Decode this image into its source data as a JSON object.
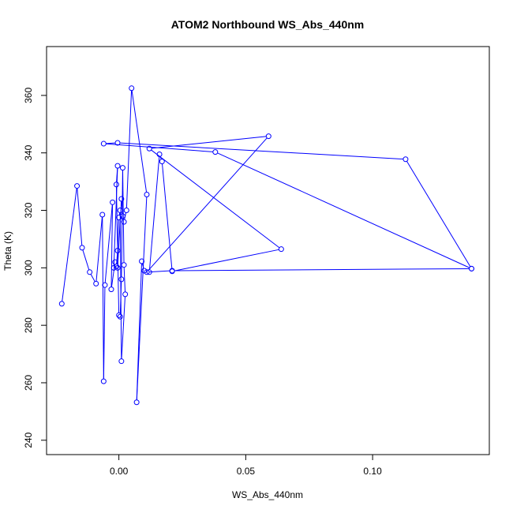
{
  "chart_data": {
    "type": "line",
    "title": "ATOM2 Northbound WS_Abs_440nm",
    "xlabel": "WS_Abs_440nm",
    "ylabel": "Theta (K)",
    "xlim": [
      -0.0285,
      0.146
    ],
    "ylim": [
      235,
      377
    ],
    "xticks": [
      0.0,
      0.05,
      0.1
    ],
    "xtick_labels": [
      "0.00",
      "0.05",
      "0.10"
    ],
    "yticks": [
      240,
      260,
      280,
      300,
      320,
      340,
      360
    ],
    "yticks_labels": [
      "240",
      "260",
      "280",
      "300",
      "320",
      "340",
      "360"
    ],
    "grid": false,
    "color": "#0000ff",
    "marker": "open-circle",
    "series": [
      {
        "x": [
          -0.0225,
          -0.0165,
          -0.0145,
          -0.0115,
          -0.009,
          -0.0065,
          -0.006,
          -0.0055,
          -0.0025,
          -0.003,
          -0.0015,
          -0.002,
          -0.0005,
          -0.001,
          0.0,
          0.0005,
          0.001,
          0.0015,
          0.002,
          0.0025,
          0.001,
          0.0005,
          0.0,
          -0.0005,
          -0.001,
          -0.0005,
          0.001,
          0.0015,
          0.002,
          0.003,
          0.005,
          0.011,
          0.007,
          0.009,
          0.01,
          0.012,
          0.016,
          0.017,
          0.021,
          0.064,
          0.012,
          0.059,
          0.011,
          0.021,
          0.139,
          0.038,
          -0.006,
          -0.0005,
          0.113,
          0.139
        ],
        "y": [
          287.5,
          328.5,
          307.0,
          298.5,
          294.5,
          318.5,
          260.5,
          294.0,
          322.8,
          292.5,
          302.0,
          300.0,
          335.5,
          329.0,
          283.5,
          283.0,
          296.0,
          334.8,
          301.0,
          290.8,
          267.5,
          320.0,
          317.5,
          306.0,
          300.5,
          300.0,
          324.0,
          318.0,
          316.0,
          320.0,
          362.5,
          325.5,
          253.2,
          302.3,
          299.0,
          298.5,
          339.5,
          337.0,
          298.8,
          306.5,
          341.5,
          345.8,
          298.5,
          299.0,
          299.7,
          340.3,
          343.2,
          343.5,
          337.8,
          299.7
        ]
      }
    ]
  }
}
